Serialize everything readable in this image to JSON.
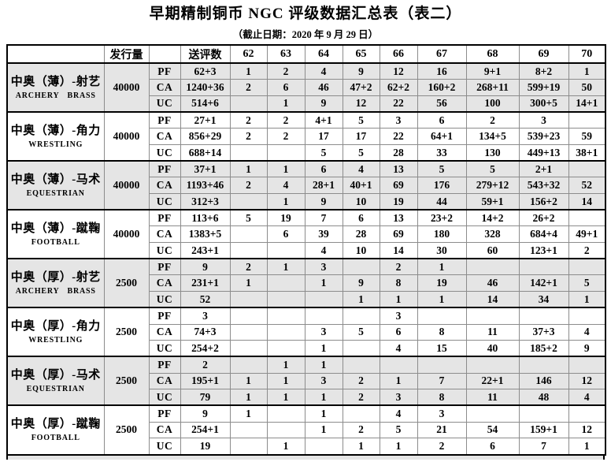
{
  "title": "早期精制铜币 NGC 评级数据汇总表（表二）",
  "subtitle": "（截止日期：2020 年 9 月 29 日）",
  "colors": {
    "row_shade": "#e5e5e5",
    "border_strong": "#000000",
    "border_light": "#8c8c8c"
  },
  "table": {
    "header": {
      "name_col": "",
      "issue_qty": "发行量",
      "type_col": "",
      "submitted": "送评数",
      "grades": [
        "62",
        "63",
        "64",
        "65",
        "66",
        "67",
        "68",
        "69",
        "70"
      ]
    },
    "groups": [
      {
        "name_cn": "中奥（薄）-射艺",
        "name_en": "ARCHERY  BRASS",
        "issue_qty": "40000",
        "shaded": true,
        "rows": [
          {
            "type": "PF",
            "submitted": "62+3",
            "grades": [
              "1",
              "2",
              "4",
              "9",
              "12",
              "16",
              "9+1",
              "8+2",
              "1"
            ]
          },
          {
            "type": "CA",
            "submitted": "1240+36",
            "grades": [
              "2",
              "6",
              "46",
              "47+2",
              "62+2",
              "160+2",
              "268+11",
              "599+19",
              "50"
            ]
          },
          {
            "type": "UC",
            "submitted": "514+6",
            "grades": [
              "",
              "1",
              "9",
              "12",
              "22",
              "56",
              "100",
              "300+5",
              "14+1"
            ]
          }
        ]
      },
      {
        "name_cn": "中奥（薄）-角力",
        "name_en": "WRESTLING",
        "issue_qty": "40000",
        "shaded": false,
        "rows": [
          {
            "type": "PF",
            "submitted": "27+1",
            "grades": [
              "2",
              "2",
              "4+1",
              "5",
              "3",
              "6",
              "2",
              "3",
              ""
            ]
          },
          {
            "type": "CA",
            "submitted": "856+29",
            "grades": [
              "2",
              "2",
              "17",
              "17",
              "22",
              "64+1",
              "134+5",
              "539+23",
              "59"
            ]
          },
          {
            "type": "UC",
            "submitted": "688+14",
            "grades": [
              "",
              "",
              "5",
              "5",
              "28",
              "33",
              "130",
              "449+13",
              "38+1"
            ]
          }
        ]
      },
      {
        "name_cn": "中奥（薄）-马术",
        "name_en": "EQUESTRIAN",
        "issue_qty": "40000",
        "shaded": true,
        "rows": [
          {
            "type": "PF",
            "submitted": "37+1",
            "grades": [
              "1",
              "1",
              "6",
              "4",
              "13",
              "5",
              "5",
              "2+1",
              ""
            ]
          },
          {
            "type": "CA",
            "submitted": "1193+46",
            "grades": [
              "2",
              "4",
              "28+1",
              "40+1",
              "69",
              "176",
              "279+12",
              "543+32",
              "52"
            ]
          },
          {
            "type": "UC",
            "submitted": "312+3",
            "grades": [
              "",
              "1",
              "9",
              "10",
              "19",
              "44",
              "59+1",
              "156+2",
              "14"
            ]
          }
        ]
      },
      {
        "name_cn": "中奥（薄）-蹴鞠",
        "name_en": "FOOTBALL",
        "issue_qty": "40000",
        "shaded": false,
        "rows": [
          {
            "type": "PF",
            "submitted": "113+6",
            "grades": [
              "5",
              "19",
              "7",
              "6",
              "13",
              "23+2",
              "14+2",
              "26+2",
              ""
            ]
          },
          {
            "type": "CA",
            "submitted": "1383+5",
            "grades": [
              "",
              "6",
              "39",
              "28",
              "69",
              "180",
              "328",
              "684+4",
              "49+1"
            ]
          },
          {
            "type": "UC",
            "submitted": "243+1",
            "grades": [
              "",
              "",
              "4",
              "10",
              "14",
              "30",
              "60",
              "123+1",
              "2"
            ]
          }
        ]
      },
      {
        "name_cn": "中奥（厚）-射艺",
        "name_en": "ARCHERY  BRASS",
        "issue_qty": "2500",
        "shaded": true,
        "rows": [
          {
            "type": "PF",
            "submitted": "9",
            "grades": [
              "2",
              "1",
              "3",
              "",
              "2",
              "1",
              "",
              "",
              ""
            ]
          },
          {
            "type": "CA",
            "submitted": "231+1",
            "grades": [
              "1",
              "",
              "1",
              "9",
              "8",
              "19",
              "46",
              "142+1",
              "5"
            ]
          },
          {
            "type": "UC",
            "submitted": "52",
            "grades": [
              "",
              "",
              "",
              "1",
              "1",
              "1",
              "14",
              "34",
              "1"
            ]
          }
        ]
      },
      {
        "name_cn": "中奥（厚）-角力",
        "name_en": "WRESTLING",
        "issue_qty": "2500",
        "shaded": false,
        "rows": [
          {
            "type": "PF",
            "submitted": "3",
            "grades": [
              "",
              "",
              "",
              "",
              "3",
              "",
              "",
              "",
              ""
            ]
          },
          {
            "type": "CA",
            "submitted": "74+3",
            "grades": [
              "",
              "",
              "3",
              "5",
              "6",
              "8",
              "11",
              "37+3",
              "4"
            ]
          },
          {
            "type": "UC",
            "submitted": "254+2",
            "grades": [
              "",
              "",
              "1",
              "",
              "4",
              "15",
              "40",
              "185+2",
              "9"
            ]
          }
        ]
      },
      {
        "name_cn": "中奥（厚）-马术",
        "name_en": "EQUESTRIAN",
        "issue_qty": "2500",
        "shaded": true,
        "rows": [
          {
            "type": "PF",
            "submitted": "2",
            "grades": [
              "",
              "1",
              "1",
              "",
              "",
              "",
              "",
              "",
              ""
            ]
          },
          {
            "type": "CA",
            "submitted": "195+1",
            "grades": [
              "1",
              "1",
              "3",
              "2",
              "1",
              "7",
              "22+1",
              "146",
              "12"
            ]
          },
          {
            "type": "UC",
            "submitted": "79",
            "grades": [
              "1",
              "1",
              "1",
              "2",
              "3",
              "8",
              "11",
              "48",
              "4"
            ]
          }
        ]
      },
      {
        "name_cn": "中奥（厚）-蹴鞠",
        "name_en": "FOOTBALL",
        "issue_qty": "2500",
        "shaded": false,
        "rows": [
          {
            "type": "PF",
            "submitted": "9",
            "grades": [
              "1",
              "",
              "1",
              "",
              "4",
              "3",
              "",
              "",
              ""
            ]
          },
          {
            "type": "CA",
            "submitted": "254+1",
            "grades": [
              "",
              "",
              "1",
              "2",
              "5",
              "21",
              "54",
              "159+1",
              "12"
            ]
          },
          {
            "type": "UC",
            "submitted": "19",
            "grades": [
              "",
              "1",
              "",
              "1",
              "1",
              "2",
              "6",
              "7",
              "1"
            ]
          }
        ]
      }
    ]
  }
}
